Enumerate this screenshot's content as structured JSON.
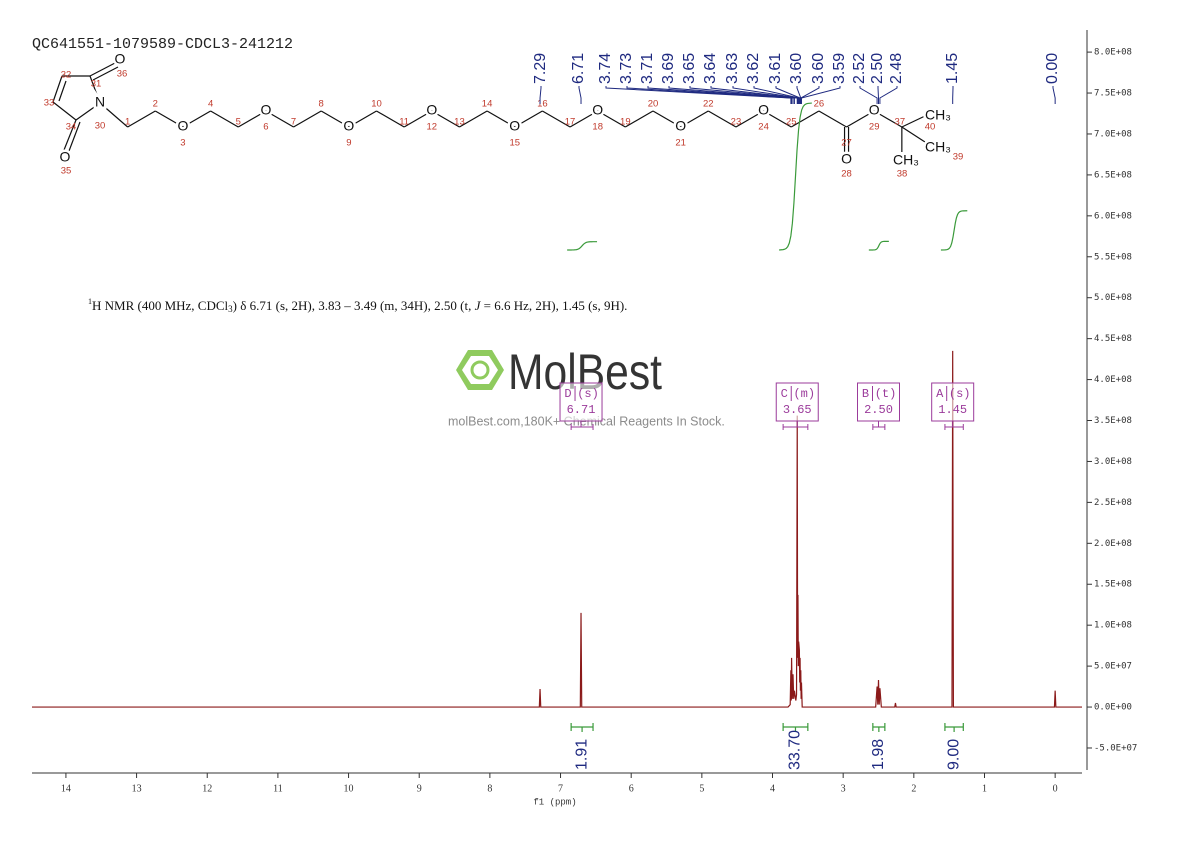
{
  "chart_data": {
    "type": "nmr",
    "title": "QC641551-1079589-CDCL3-241212",
    "description": {
      "sup": "1",
      "a": "H NMR (400 MHz, CDCl",
      "sub": "3",
      "b": ") δ 6.71 (s, 2H), 3.83 – 3.49 (m, 34H), 2.50 (t, ",
      "j": "J",
      "c": " = 6.6 Hz, 2H), 1.45 (s, 9H)."
    },
    "xlabel": "f1 (ppm)",
    "xlim": [
      14.48,
      -0.38
    ],
    "xticks": [
      14,
      13,
      12,
      11,
      10,
      9,
      8,
      7,
      6,
      5,
      4,
      3,
      2,
      1,
      0
    ],
    "ylim": [
      -83000000,
      827000000
    ],
    "yticks": [
      {
        "value": -50000000,
        "label": "-5.0E+07"
      },
      {
        "value": 0,
        "label": "0.0E+00"
      },
      {
        "value": 50000000,
        "label": "5.0E+07"
      },
      {
        "value": 100000000,
        "label": "1.0E+08"
      },
      {
        "value": 150000000,
        "label": "1.5E+08"
      },
      {
        "value": 200000000,
        "label": "2.0E+08"
      },
      {
        "value": 250000000,
        "label": "2.5E+08"
      },
      {
        "value": 300000000,
        "label": "3.0E+08"
      },
      {
        "value": 350000000,
        "label": "3.5E+08"
      },
      {
        "value": 400000000,
        "label": "4.0E+08"
      },
      {
        "value": 450000000,
        "label": "4.5E+08"
      },
      {
        "value": 500000000,
        "label": "5.0E+08"
      },
      {
        "value": 550000000,
        "label": "5.5E+08"
      },
      {
        "value": 600000000,
        "label": "6.0E+08"
      },
      {
        "value": 650000000,
        "label": "6.5E+08"
      },
      {
        "value": 700000000,
        "label": "7.0E+08"
      },
      {
        "value": 750000000,
        "label": "7.5E+08"
      },
      {
        "value": 800000000,
        "label": "8.0E+08"
      }
    ],
    "color": "#8b1a1a",
    "x": [
      14.48,
      7.3,
      7.29,
      7.28,
      6.72,
      6.71,
      6.7,
      3.78,
      3.75,
      3.74,
      3.735,
      3.73,
      3.72,
      3.71,
      3.7,
      3.69,
      3.67,
      3.66,
      3.65,
      3.645,
      3.64,
      3.635,
      3.63,
      3.62,
      3.615,
      3.61,
      3.605,
      3.6,
      3.595,
      3.59,
      3.58,
      2.54,
      2.52,
      2.51,
      2.5,
      2.49,
      2.48,
      2.46,
      2.27,
      2.26,
      2.25,
      1.46,
      1.45,
      1.44,
      0.01,
      0.0,
      -0.01,
      -0.38
    ],
    "values": [
      0,
      0,
      22000000,
      0,
      0,
      115000000,
      0,
      0,
      3000000,
      45000000,
      8000000,
      60000000,
      10000000,
      40000000,
      10000000,
      20000000,
      8000000,
      15000000,
      356000000,
      60000000,
      137000000,
      50000000,
      80000000,
      70000000,
      30000000,
      60000000,
      20000000,
      45000000,
      10000000,
      30000000,
      0,
      0,
      25000000,
      3000000,
      33000000,
      3000000,
      23000000,
      0,
      0,
      5000000,
      0,
      0,
      435000000,
      0,
      0,
      20000000,
      0,
      0
    ],
    "peak_label_color": "#1f2a80",
    "peak_labels": [
      {
        "value": 7.29,
        "label": "7.29"
      },
      {
        "value": 6.71,
        "label": "6.71"
      },
      {
        "value": 3.74,
        "label": "3.74"
      },
      {
        "value": 3.73,
        "label": "3.73"
      },
      {
        "value": 3.71,
        "label": "3.71"
      },
      {
        "value": 3.69,
        "label": "3.69"
      },
      {
        "value": 3.65,
        "label": "3.65"
      },
      {
        "value": 3.64,
        "label": "3.64"
      },
      {
        "value": 3.63,
        "label": "3.63"
      },
      {
        "value": 3.62,
        "label": "3.62"
      },
      {
        "value": 3.61,
        "label": "3.61"
      },
      {
        "value": 3.6,
        "label": "3.60"
      },
      {
        "value": 3.6,
        "label": "3.60"
      },
      {
        "value": 3.59,
        "label": "3.59"
      },
      {
        "value": 2.52,
        "label": "2.52"
      },
      {
        "value": 2.5,
        "label": "2.50"
      },
      {
        "value": 2.48,
        "label": "2.48"
      },
      {
        "value": 1.45,
        "label": "1.45"
      },
      {
        "value": 0,
        "label": "0.00"
      }
    ],
    "integral_color": "#3a9a3a",
    "integrals": [
      {
        "range": [
          6.85,
          6.54
        ],
        "value": 1.91,
        "label": "1.91"
      },
      {
        "range": [
          3.85,
          3.5
        ],
        "value": 33.7,
        "label": "33.70"
      },
      {
        "range": [
          2.58,
          2.41
        ],
        "value": 1.98,
        "label": "1.98"
      },
      {
        "range": [
          1.56,
          1.3
        ],
        "value": 9,
        "label": "9.00"
      }
    ],
    "multiplet_color": "#9b3b9b",
    "multiplets": [
      {
        "name": "D",
        "mult": "(s)",
        "shift": {
          "value": 6.71,
          "label": "6.71"
        }
      },
      {
        "name": "C",
        "mult": "(m)",
        "shift": {
          "value": 3.65,
          "label": "3.65"
        }
      },
      {
        "name": "B",
        "mult": "(t)",
        "shift": {
          "value": 2.5,
          "label": "2.50"
        }
      },
      {
        "name": "A",
        "mult": "(s)",
        "shift": {
          "value": 1.45,
          "label": "1.45"
        }
      }
    ]
  },
  "structure": {
    "symbols": [
      "N",
      "O",
      "O",
      "O",
      "O",
      "O",
      "O",
      "O",
      "O",
      "O",
      "O",
      "O",
      "O",
      "CH₃",
      "CH₃",
      "CH₃"
    ],
    "numbers": [
      "1",
      "2",
      "3",
      "4",
      "5",
      "6",
      "7",
      "8",
      "9",
      "10",
      "11",
      "12",
      "13",
      "14",
      "15",
      "16",
      "17",
      "18",
      "19",
      "20",
      "21",
      "22",
      "23",
      "24",
      "25",
      "26",
      "27",
      "28",
      "29",
      "30",
      "31",
      "32",
      "33",
      "34",
      "35",
      "36",
      "37",
      "38",
      "39",
      "40"
    ]
  },
  "watermark": {
    "brand": "MolBest",
    "tagline": "molBest.com,180K+ Chemical Reagents In Stock."
  }
}
